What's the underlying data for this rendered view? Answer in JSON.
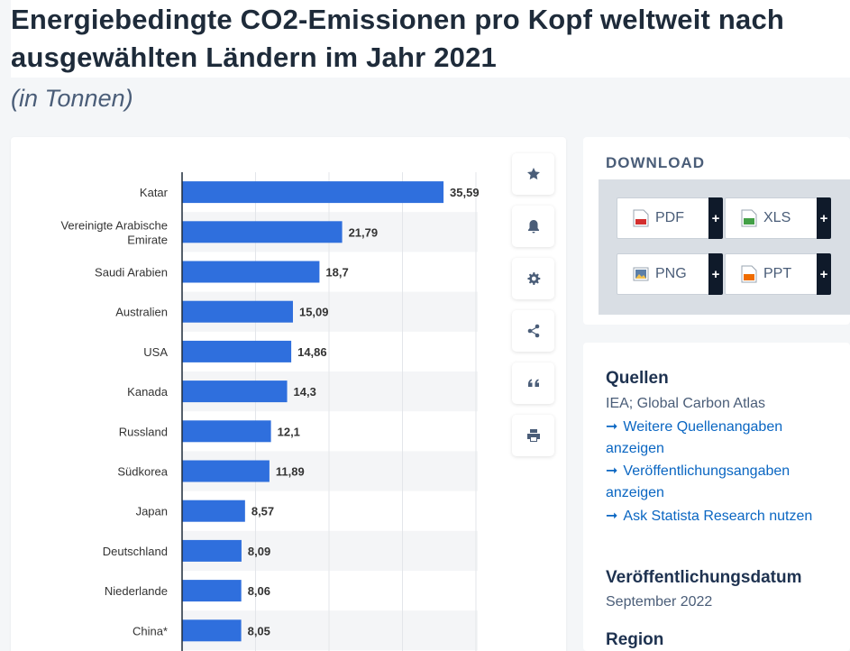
{
  "page": {
    "title_line1": "Energiebedingte CO2-Emissionen pro Kopf weltweit nach",
    "title_line2": "ausgewählten Ländern im Jahr 2021",
    "subtitle": "(in Tonnen)"
  },
  "toolbar": {
    "buttons": [
      "star-icon",
      "bell-icon",
      "gear-icon",
      "share-icon",
      "quote-icon",
      "print-icon"
    ]
  },
  "download": {
    "title": "DOWNLOAD",
    "buttons": [
      {
        "label": "PDF",
        "plus": "+",
        "color": "#d32f2f"
      },
      {
        "label": "XLS",
        "plus": "+",
        "color": "#43a047"
      },
      {
        "label": "PNG",
        "plus": "+",
        "color": "#5c7fa8"
      },
      {
        "label": "PPT",
        "plus": "+",
        "color": "#ef6c00"
      }
    ]
  },
  "info": {
    "sources_heading": "Quellen",
    "sources_text": "IEA; Global Carbon Atlas",
    "links": [
      {
        "arrow": "➞",
        "text": "Weitere Quellenangaben anzeigen"
      },
      {
        "arrow": "➞",
        "text": "Veröffentlichungsangaben anzeigen"
      },
      {
        "arrow": "➞",
        "text": "Ask Statista Research nutzen"
      }
    ],
    "pubdate_heading": "Veröffentlichungsdatum",
    "pubdate_text": "September 2022",
    "region_heading": "Region"
  },
  "colors": {
    "bar": "#2f6fdd",
    "accent": "#0a66c2",
    "stripe": "#f4f5f7"
  },
  "chart_data": {
    "type": "bar",
    "orientation": "horizontal",
    "categories": [
      [
        "Katar"
      ],
      [
        "Vereinigte Arabische",
        "Emirate"
      ],
      [
        "Saudi Arabien"
      ],
      [
        "Australien"
      ],
      [
        "USA"
      ],
      [
        "Kanada"
      ],
      [
        "Russland"
      ],
      [
        "Südkorea"
      ],
      [
        "Japan"
      ],
      [
        "Deutschland"
      ],
      [
        "Niederlande"
      ],
      [
        "China*"
      ]
    ],
    "values": [
      35.59,
      21.79,
      18.7,
      15.09,
      14.86,
      14.3,
      12.1,
      11.89,
      8.57,
      8.09,
      8.06,
      8.05
    ],
    "labels": [
      "35,59",
      "21,79",
      "18,7",
      "15,09",
      "14,86",
      "14,3",
      "12,1",
      "11,89",
      "8,57",
      "8,09",
      "8,06",
      "8,05"
    ],
    "xlim": [
      0,
      40
    ],
    "grid": true
  }
}
